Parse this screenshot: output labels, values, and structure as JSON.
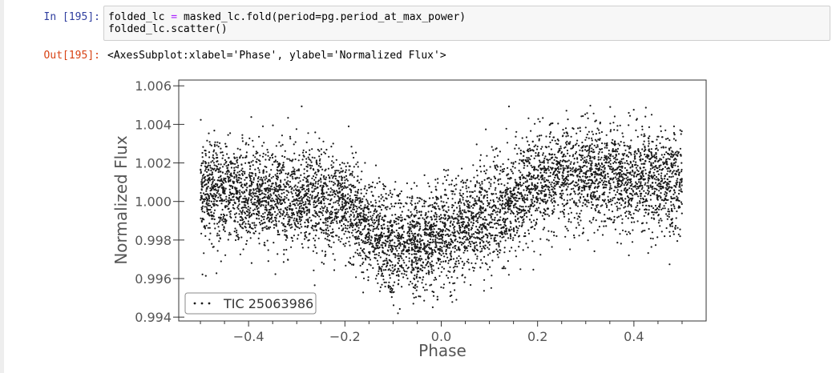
{
  "cell": {
    "input_prompt": "In [195]:",
    "output_prompt": "Out[195]:",
    "code": {
      "line1_var": "folded_lc",
      "line1_op": "=",
      "line1_rest": "masked_lc.fold(period=pg.period_at_max_power)",
      "line2": "folded_lc.scatter()"
    },
    "output_text": "<AxesSubplot:xlabel='Phase', ylabel='Normalized Flux'>"
  },
  "chart_data": {
    "type": "scatter",
    "xlabel": "Phase",
    "ylabel": "Normalized Flux",
    "xlim": [
      -0.545,
      0.55
    ],
    "ylim": [
      0.9938,
      1.0063
    ],
    "xticks": [
      -0.4,
      -0.2,
      0.0,
      0.2,
      0.4
    ],
    "xtick_labels": [
      "−0.4",
      "−0.2",
      "0.0",
      "0.2",
      "0.4"
    ],
    "yticks": [
      0.994,
      0.996,
      0.998,
      1.0,
      1.002,
      1.004,
      1.006
    ],
    "ytick_labels": [
      "0.994",
      "0.996",
      "0.998",
      "1.000",
      "1.002",
      "1.004",
      "1.006"
    ],
    "grid": false,
    "legend": {
      "position": "lower-left",
      "entries": [
        "TIC 25063986"
      ]
    },
    "series": [
      {
        "name": "TIC 25063986",
        "color": "#1a1a1a",
        "x_range": [
          -0.5,
          0.5
        ],
        "trend_phase": [
          -0.5,
          -0.4,
          -0.3,
          -0.2,
          -0.15,
          -0.1,
          -0.05,
          0.0,
          0.05,
          0.1,
          0.15,
          0.2,
          0.25,
          0.3,
          0.4,
          0.5
        ],
        "trend_flux": [
          1.0007,
          1.0004,
          1.0002,
          0.9998,
          0.9985,
          0.9976,
          0.9978,
          0.9983,
          0.9986,
          0.9992,
          1.0002,
          1.0009,
          1.0013,
          1.0014,
          1.0012,
          1.0009
        ],
        "scatter_sigma": 0.0013
      }
    ]
  }
}
